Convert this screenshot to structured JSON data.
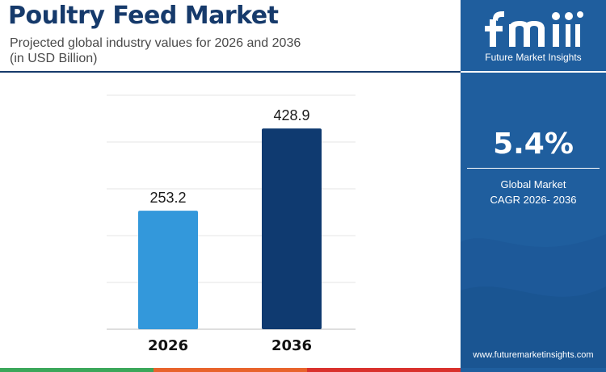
{
  "header": {
    "title": "Poultry Feed Market",
    "subtitle_line1": "Projected global industry values for 2026 and 2036",
    "subtitle_line2": "(in USD Billion)"
  },
  "chart_data": {
    "type": "bar",
    "categories": [
      "2026",
      "2036"
    ],
    "values": [
      253.2,
      428.9
    ],
    "value_labels": [
      "253.2",
      "428.9"
    ],
    "bar_colors": [
      "#3398db",
      "#0f3a70"
    ],
    "ylim": [
      0,
      500
    ],
    "grid": true,
    "legend": "none"
  },
  "panel": {
    "brand": "Future Market Insights",
    "cagr_value": "5.4%",
    "cagr_label_line1": "Global Market",
    "cagr_label_line2": "CAGR 2026- 2036",
    "website": "www.futuremarketinsights.com"
  },
  "colors": {
    "title": "#163a6b",
    "panel_bg": "#1f5e9e",
    "strip": [
      "#1f5e9e",
      "#3ba75a",
      "#e8632b",
      "#d9312c",
      "#1f5e9e"
    ]
  },
  "icons": {
    "logo": "fmi-logo-icon"
  }
}
